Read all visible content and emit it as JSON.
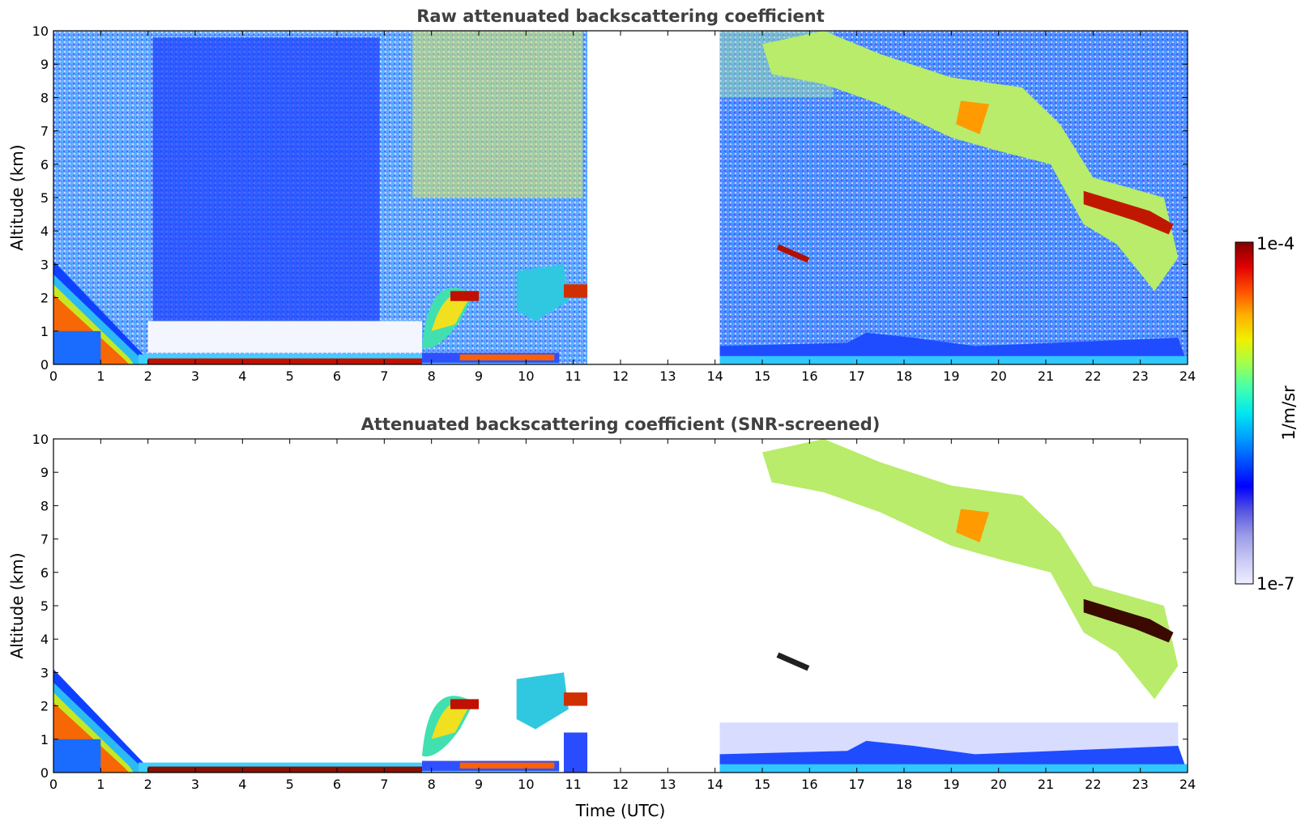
{
  "chart_data": [
    {
      "type": "heatmap",
      "title": "Raw attenuated backscattering coefficient",
      "xlabel": "",
      "ylabel": "Altitude (km)",
      "xlim": [
        0,
        24
      ],
      "ylim": [
        0,
        10
      ],
      "x_ticks": [
        "0",
        "1",
        "2",
        "3",
        "4",
        "5",
        "6",
        "7",
        "8",
        "9",
        "10",
        "11",
        "12",
        "13",
        "14",
        "15",
        "16",
        "17",
        "18",
        "19",
        "20",
        "21",
        "22",
        "23",
        "24"
      ],
      "y_ticks": [
        "0",
        "1",
        "2",
        "3",
        "4",
        "5",
        "6",
        "7",
        "8",
        "9",
        "10"
      ],
      "data_gaps": [
        [
          11.3,
          14.1
        ]
      ],
      "features": [
        {
          "kind": "boundary-layer aerosol",
          "t": [
            0,
            1.9
          ],
          "altitude_km": [
            0,
            3.0
          ],
          "level": "high"
        },
        {
          "kind": "surface layer",
          "t": [
            1.9,
            10.7
          ],
          "altitude_km": [
            0,
            0.3
          ],
          "level": "very high"
        },
        {
          "kind": "low cloud",
          "t": [
            7.8,
            11.3
          ],
          "altitude_km": [
            0.5,
            3.3
          ],
          "level": "high"
        },
        {
          "kind": "elevated layer",
          "t": [
            15.3,
            16.0
          ],
          "altitude_km": [
            3.2,
            3.6
          ],
          "level": "very high"
        },
        {
          "kind": "cirrus",
          "t": [
            16.2,
            24.0
          ],
          "altitude_km": [
            2.0,
            10.0
          ],
          "level": "moderate-high"
        },
        {
          "kind": "surface layer",
          "t": [
            14.1,
            24.0
          ],
          "altitude_km": [
            0,
            1.0
          ],
          "level": "low-moderate"
        }
      ]
    },
    {
      "type": "heatmap",
      "title": "Attenuated backscattering coefficient (SNR-screened)",
      "xlabel": "Time (UTC)",
      "ylabel": "Altitude (km)",
      "xlim": [
        0,
        24
      ],
      "ylim": [
        0,
        10
      ],
      "x_ticks": [
        "0",
        "1",
        "2",
        "3",
        "4",
        "5",
        "6",
        "7",
        "8",
        "9",
        "10",
        "11",
        "12",
        "13",
        "14",
        "15",
        "16",
        "17",
        "18",
        "19",
        "20",
        "21",
        "22",
        "23",
        "24"
      ],
      "y_ticks": [
        "0",
        "1",
        "2",
        "3",
        "4",
        "5",
        "6",
        "7",
        "8",
        "9",
        "10"
      ],
      "data_gaps": [
        [
          11.3,
          14.1
        ]
      ]
    }
  ],
  "colorbar": {
    "max_label": "1e-4",
    "min_label": "1e-7",
    "unit_label": "1/m/sr",
    "colors": [
      "#eeeeff",
      "#c8c8f4",
      "#9a9ae8",
      "#5555e0",
      "#0000ff",
      "#0050ff",
      "#00a0ff",
      "#00e8f0",
      "#40ffb0",
      "#a0ff50",
      "#f0f000",
      "#ffb000",
      "#ff5000",
      "#e00000",
      "#800000"
    ]
  }
}
